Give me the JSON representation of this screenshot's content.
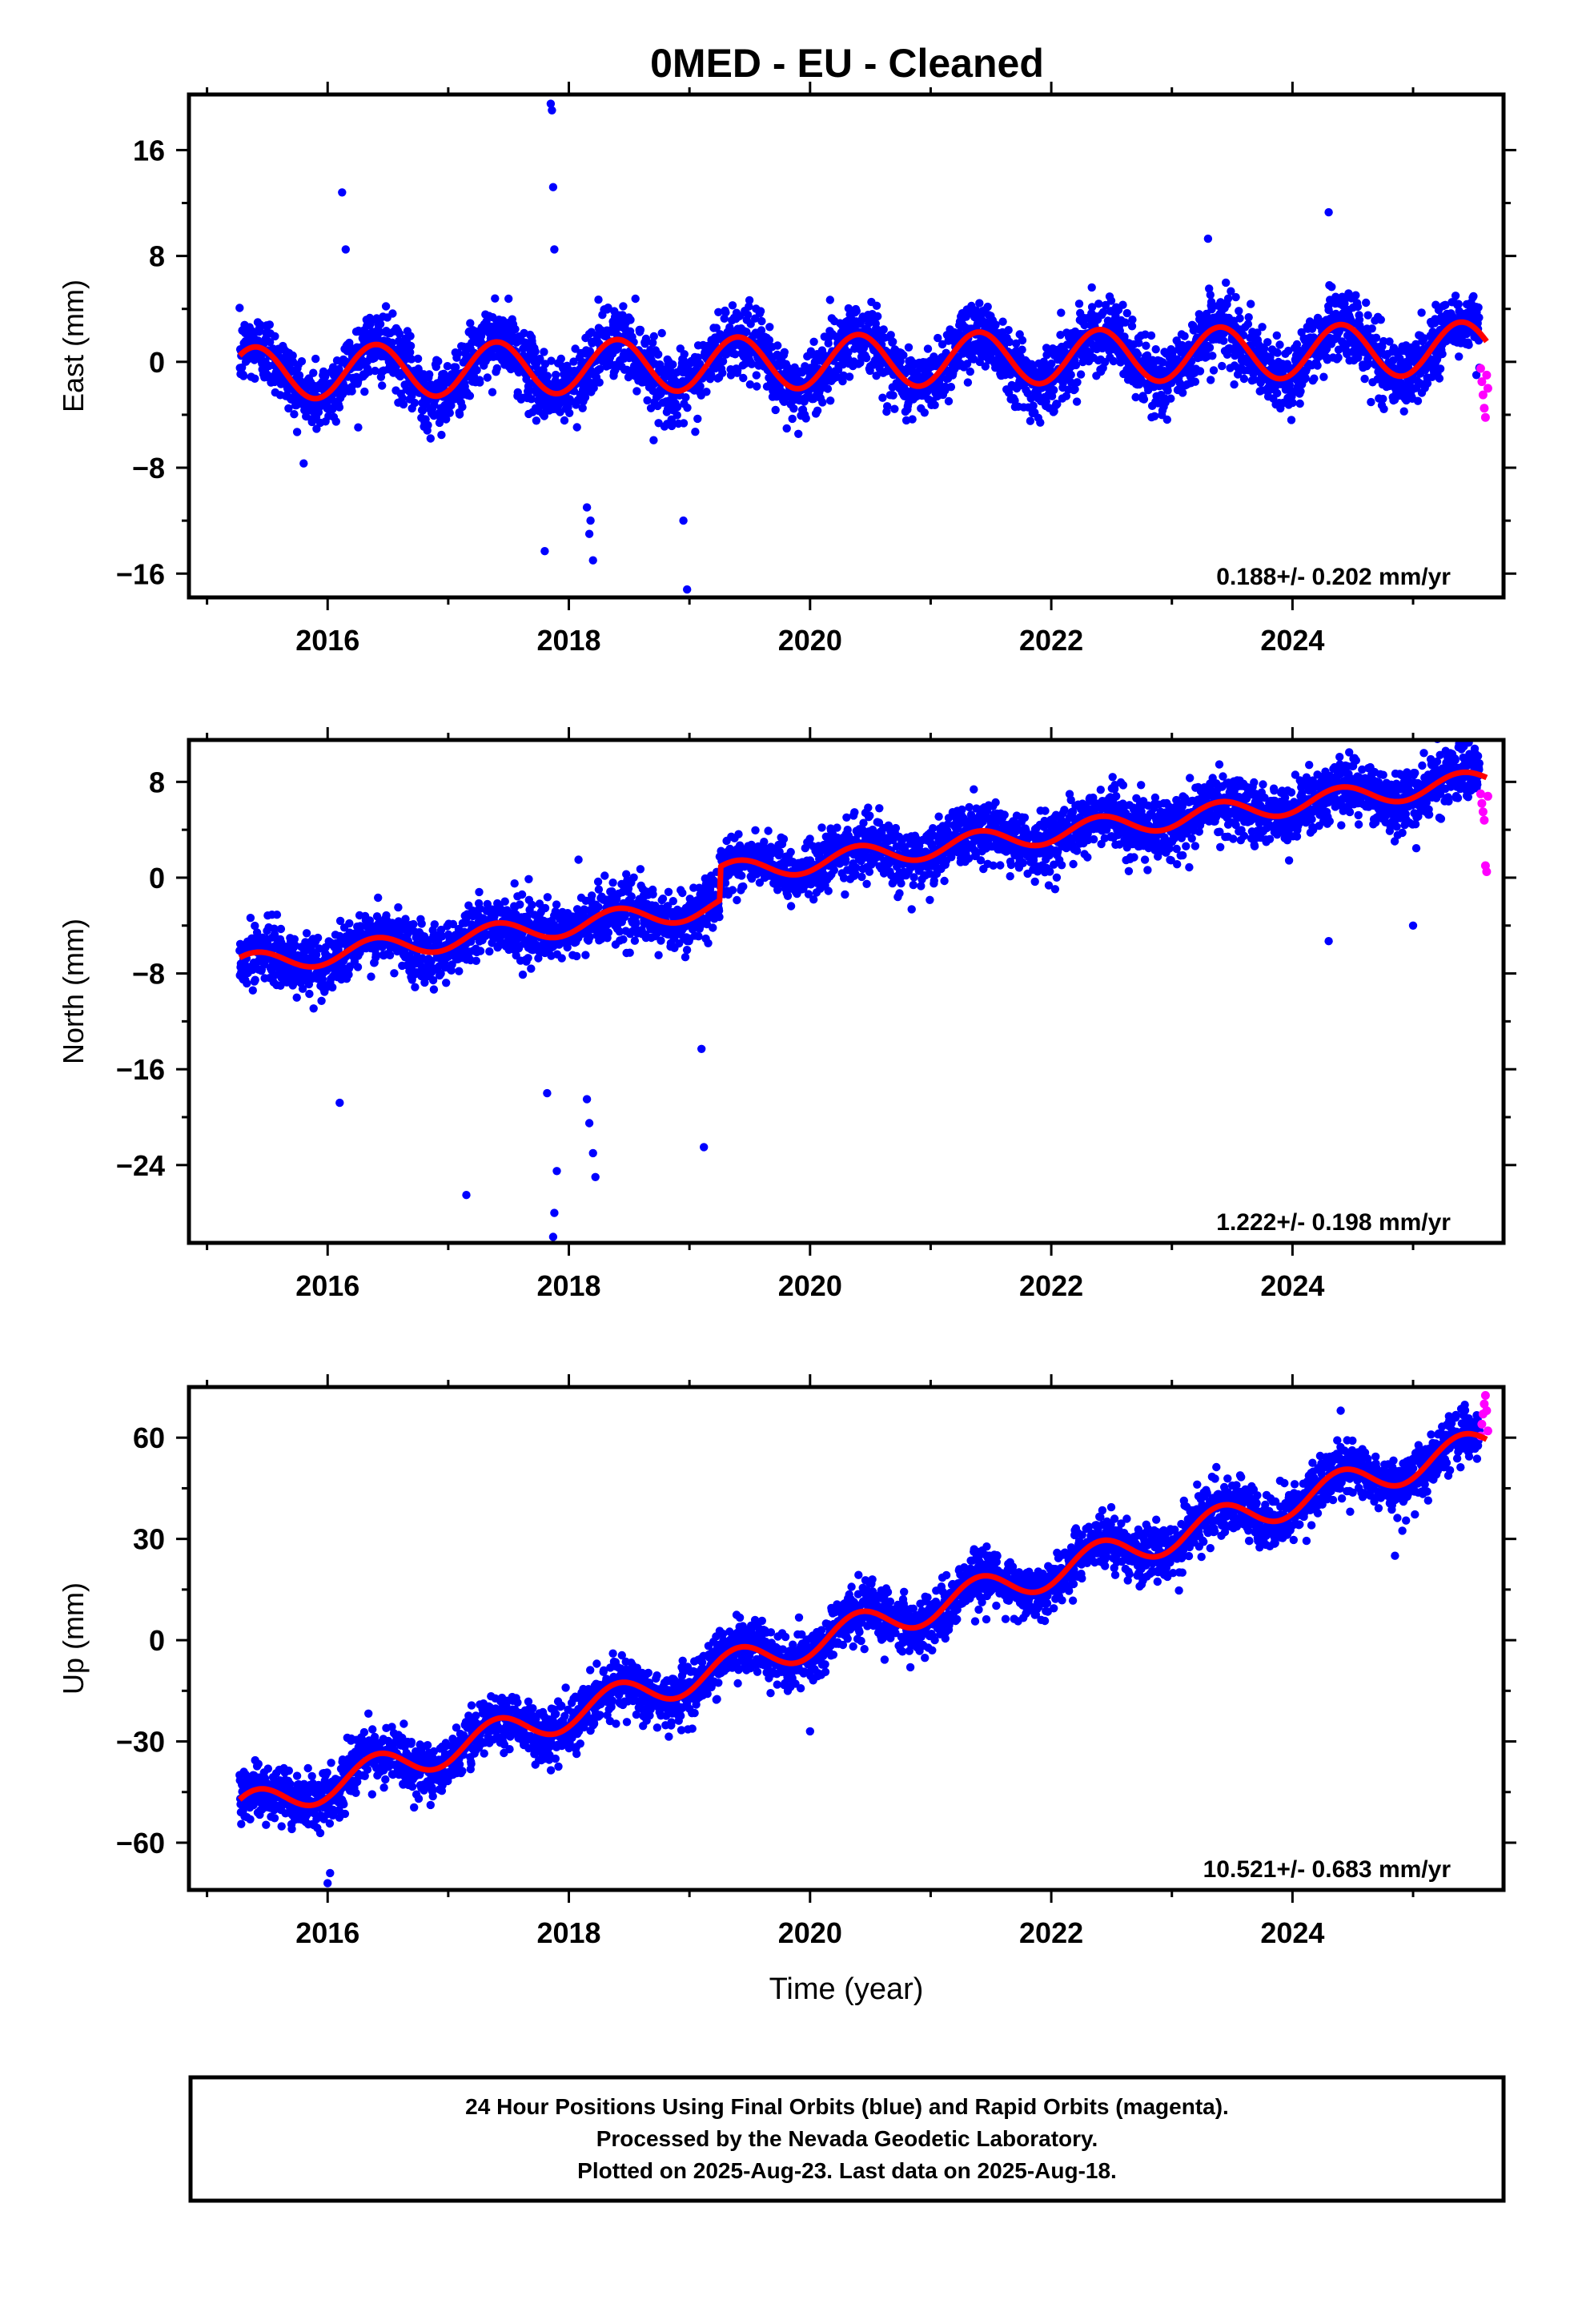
{
  "title": "0MED  - EU - Cleaned",
  "colors": {
    "final_orbits": "#0000ff",
    "rapid_orbits": "#ff00ff",
    "model_fit": "#ff0000",
    "frame": "#000000"
  },
  "footer": {
    "line1": "24 Hour Positions Using Final Orbits (blue) and Rapid Orbits (magenta).",
    "line2": "Processed by the Nevada Geodetic Laboratory.",
    "line3": "Plotted on 2025-Aug-23. Last data on 2025-Aug-18."
  },
  "chart_data": [
    {
      "type": "scatter",
      "ylabel": "East (mm)",
      "xlabel": "",
      "xlim": [
        2014.85,
        2025.75
      ],
      "ylim": [
        -17.8,
        20.2
      ],
      "x_ticks": [
        2016,
        2018,
        2020,
        2022,
        2024
      ],
      "x_tick_labels": [
        "2016",
        "2018",
        "2020",
        "2022",
        "2024"
      ],
      "y_ticks": [
        16,
        8,
        0,
        -8,
        -16
      ],
      "y_tick_labels": [
        "16",
        "8",
        "0",
        "−8",
        "−16"
      ],
      "rate_label": "0.188+/- 0.202 mm/yr",
      "series": [
        {
          "name": "Final Orbits",
          "color": "#0000ff",
          "x_range": [
            2015.27,
            2025.55
          ],
          "trend": 0.188,
          "offset": -0.9,
          "annual_amp": 2.0,
          "noise": 1.3
        },
        {
          "name": "Rapid Orbits",
          "color": "#ff00ff",
          "x": [
            2025.56,
            2025.57,
            2025.58,
            2025.59,
            2025.6,
            2025.61,
            2025.62
          ],
          "y": [
            -0.5,
            -1.5,
            -2.5,
            -3.5,
            -4.2,
            -1.0,
            -2.0
          ]
        }
      ],
      "outliers": {
        "x": [
          2017.85,
          2017.86,
          2017.87,
          2017.88,
          2016.12,
          2016.15,
          2018.15,
          2018.17,
          2018.2,
          2018.18,
          2017.8,
          2018.98,
          2018.95,
          2023.3,
          2024.3
        ],
        "y": [
          19.5,
          19.0,
          13.2,
          8.5,
          12.8,
          8.5,
          -11.0,
          -13.0,
          -15.0,
          -12.0,
          -14.3,
          -17.2,
          -12.0,
          9.3,
          11.3
        ]
      }
    },
    {
      "type": "scatter",
      "ylabel": "North (mm)",
      "xlabel": "",
      "xlim": [
        2014.85,
        2025.75
      ],
      "ylim": [
        -30.5,
        11.5
      ],
      "x_ticks": [
        2016,
        2018,
        2020,
        2022,
        2024
      ],
      "x_tick_labels": [
        "2016",
        "2018",
        "2020",
        "2022",
        "2024"
      ],
      "y_ticks": [
        8,
        0,
        -8,
        -16,
        -24
      ],
      "y_tick_labels": [
        "8",
        "0",
        "−8",
        "−16",
        "−24"
      ],
      "rate_label": "1.222+/- 0.198 mm/yr",
      "series": [
        {
          "name": "Final Orbits",
          "color": "#0000ff",
          "x_range": [
            2015.27,
            2025.55
          ],
          "trend": 1.222,
          "offset": -7.3,
          "annual_amp": 0.9,
          "noise": 1.2,
          "step": {
            "at": 2019.25,
            "size": 2.8
          }
        },
        {
          "name": "Rapid Orbits",
          "color": "#ff00ff",
          "x": [
            2025.56,
            2025.57,
            2025.58,
            2025.59,
            2025.6,
            2025.61,
            2025.62
          ],
          "y": [
            7.0,
            6.2,
            5.5,
            4.8,
            1.0,
            0.5,
            6.8
          ]
        }
      ],
      "outliers": {
        "x": [
          2017.87,
          2017.88,
          2017.9,
          2018.15,
          2018.17,
          2018.2,
          2018.22,
          2017.82,
          2017.15,
          2018.08,
          2019.1,
          2019.12,
          2016.1,
          2024.3,
          2025.0
        ],
        "y": [
          -30.0,
          -28.0,
          -24.5,
          -18.5,
          -20.5,
          -23.0,
          -25.0,
          -18.0,
          -26.5,
          1.5,
          -14.3,
          -22.5,
          -18.8,
          -5.3,
          -4.0
        ]
      }
    },
    {
      "type": "scatter",
      "ylabel": "Up (mm)",
      "xlabel": "Time (year)",
      "xlim": [
        2014.85,
        2025.75
      ],
      "ylim": [
        -74,
        75
      ],
      "x_ticks": [
        2016,
        2018,
        2020,
        2022,
        2024
      ],
      "x_tick_labels": [
        "2016",
        "2018",
        "2020",
        "2022",
        "2024"
      ],
      "y_ticks": [
        60,
        30,
        0,
        -30,
        -60
      ],
      "y_tick_labels": [
        "60",
        "30",
        "0",
        "−30",
        "−60"
      ],
      "rate_label": "10.521+/- 0.683 mm/yr",
      "series": [
        {
          "name": "Final Orbits",
          "color": "#0000ff",
          "x_range": [
            2015.27,
            2025.55
          ],
          "trend": 10.521,
          "offset": -50.5,
          "annual_amp": 4.8,
          "noise": 4.0
        },
        {
          "name": "Rapid Orbits",
          "color": "#ff00ff",
          "x": [
            2025.56,
            2025.57,
            2025.58,
            2025.59,
            2025.6,
            2025.61,
            2025.62
          ],
          "y": [
            60.5,
            64.0,
            67.0,
            70.0,
            72.5,
            68.0,
            62.0
          ]
        }
      ],
      "outliers": {
        "x": [
          2016.0,
          2016.02,
          2024.85,
          2020.0,
          2024.4
        ],
        "y": [
          -72.0,
          -69.0,
          25.0,
          -27.0,
          68.0
        ]
      }
    }
  ]
}
